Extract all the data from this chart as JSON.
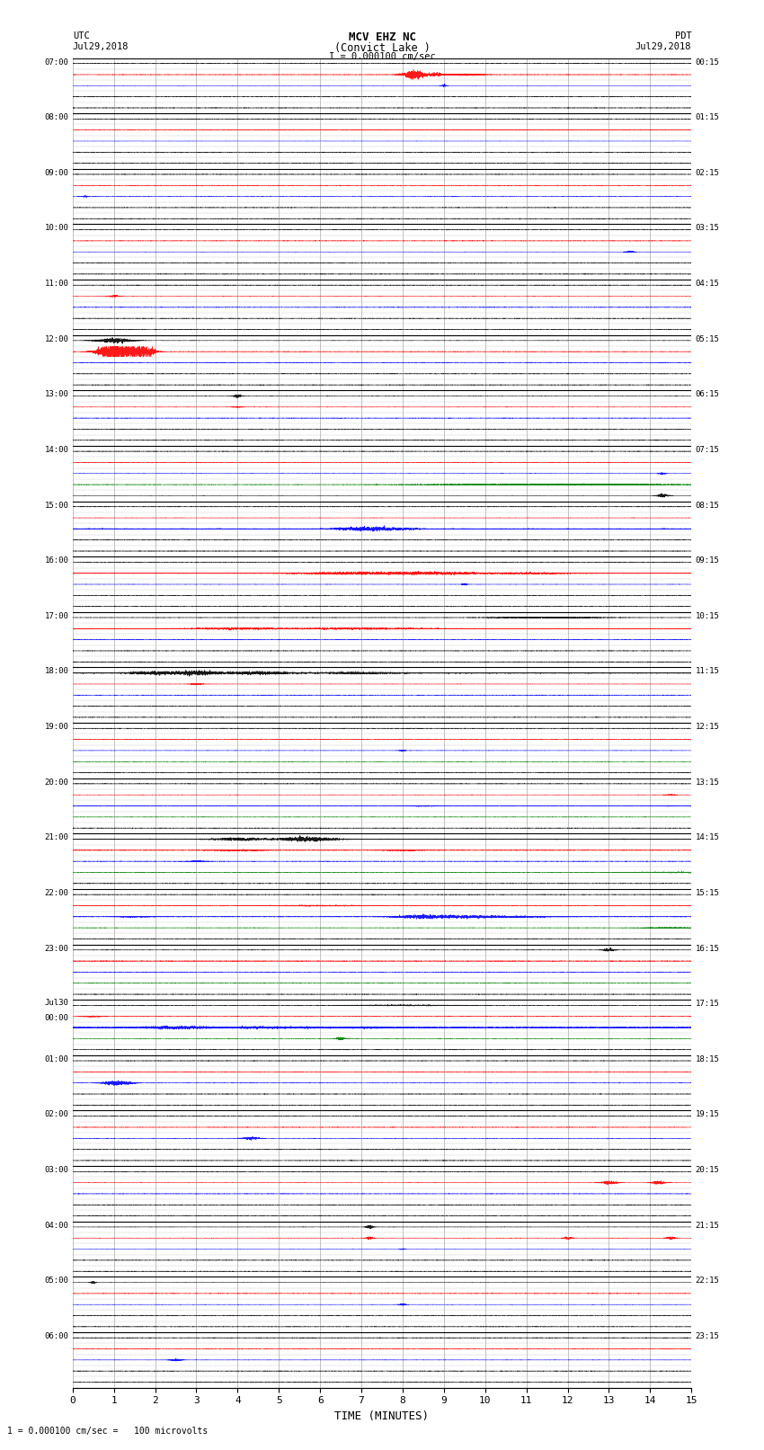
{
  "title_line1": "MCV EHZ NC",
  "title_line2": "(Convict Lake )",
  "title_line3": "I = 0.000100 cm/sec",
  "left_label_top": "UTC",
  "left_label_date": "Jul29,2018",
  "right_label_top": "PDT",
  "right_label_date": "Jul29,2018",
  "bottom_label": "TIME (MINUTES)",
  "bottom_note": "1 = 0.000100 cm/sec =   100 microvolts",
  "xlabel_ticks": [
    0,
    1,
    2,
    3,
    4,
    5,
    6,
    7,
    8,
    9,
    10,
    11,
    12,
    13,
    14,
    15
  ],
  "xlim": [
    0,
    15
  ],
  "bg_color": "#ffffff",
  "grid_color_h": "#000000",
  "grid_color_v": "#aaaaaa",
  "utc_labels": [
    "07:00",
    "08:00",
    "09:00",
    "10:00",
    "11:00",
    "12:00",
    "13:00",
    "14:00",
    "15:00",
    "16:00",
    "17:00",
    "18:00",
    "19:00",
    "20:00",
    "21:00",
    "22:00",
    "23:00",
    "Jul30\n00:00",
    "01:00",
    "02:00",
    "03:00",
    "04:00",
    "05:00",
    "06:00"
  ],
  "pdt_labels": [
    "00:15",
    "01:15",
    "02:15",
    "03:15",
    "04:15",
    "05:15",
    "06:15",
    "07:15",
    "08:15",
    "09:15",
    "10:15",
    "11:15",
    "12:15",
    "13:15",
    "14:15",
    "15:15",
    "16:15",
    "17:15",
    "18:15",
    "19:15",
    "20:15",
    "21:15",
    "22:15",
    "23:15"
  ],
  "num_rows": 24,
  "subtraces_per_row": 5,
  "seed": 12345
}
